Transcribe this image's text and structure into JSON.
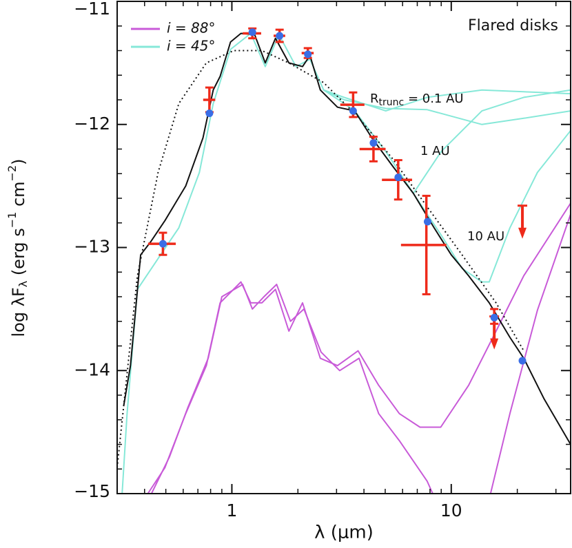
{
  "chart_data": {
    "type": "line",
    "xscale": "log",
    "xlim": [
      0.3,
      35
    ],
    "ylim": [
      -15,
      -11
    ],
    "xticks": [
      1,
      10
    ],
    "xminor_ticks": [
      0.3,
      0.4,
      0.5,
      0.6,
      0.7,
      0.8,
      0.9,
      2,
      3,
      4,
      5,
      6,
      7,
      8,
      9,
      20,
      30
    ],
    "yticks": [
      {
        "value": -11,
        "label": "−11"
      },
      {
        "value": -12,
        "label": "−12"
      },
      {
        "value": -13,
        "label": "−13"
      },
      {
        "value": -14,
        "label": "−14"
      },
      {
        "value": -15,
        "label": "−15"
      }
    ],
    "yminor_ticks": [
      -11.2,
      -11.4,
      -11.6,
      -11.8,
      -12.2,
      -12.4,
      -12.6,
      -12.8,
      -13.2,
      -13.4,
      -13.6,
      -13.8,
      -14.2,
      -14.4,
      -14.6,
      -14.8
    ],
    "xlabel": "λ (μm)",
    "ylabel_parts": [
      "log λF",
      "λ",
      " (erg s",
      "−1",
      " cm",
      "−2",
      ")"
    ],
    "legend": "upper left",
    "annotations": {
      "title": "Flared disks",
      "rtrunc_parts": [
        "R",
        "trunc",
        " = 0.1 AU"
      ],
      "one_au": "1 AU",
      "ten_au": "10 AU"
    },
    "series": [
      {
        "name": "i = 88°",
        "color": "#c85ad8",
        "lines": [
          {
            "x": [
              0.414,
              0.495,
              0.616,
              0.765,
              0.884,
              1.1,
              1.22,
              1.37,
              1.58,
              1.82,
              2.1,
              2.53,
              3.03,
              3.76,
              4.67,
              5.8,
              7.2,
              8.95,
              12.0,
              16.0,
              21.4,
              35
            ],
            "values": [
              -15,
              -14.79,
              -14.35,
              -13.96,
              -13.45,
              -13.28,
              -13.45,
              -13.45,
              -13.34,
              -13.68,
              -13.45,
              -13.9,
              -13.96,
              -13.84,
              -14.12,
              -14.35,
              -14.46,
              -14.46,
              -14.12,
              -13.68,
              -13.23,
              -12.64
            ]
          },
          {
            "x": [
              0.43,
              0.52,
              0.63,
              0.78,
              0.9,
              1.12,
              1.24,
              1.4,
              1.6,
              1.85,
              2.13,
              2.55,
              3.1,
              3.8,
              4.67,
              5.8,
              7.77,
              8.23,
              null,
              15.1,
              18.5,
              24.7,
              35
            ],
            "values": [
              -15,
              -14.7,
              -14.3,
              -13.9,
              -13.4,
              -13.3,
              -13.5,
              -13.4,
              -13.3,
              -13.6,
              -13.5,
              -13.85,
              -14.0,
              -13.9,
              -14.35,
              -14.57,
              -14.9,
              -15,
              null,
              -15,
              -14.35,
              -13.51,
              -12.73
            ]
          }
        ]
      },
      {
        "name": "i = 45°",
        "color": "#86e8d8",
        "lines": [
          {
            "x": [
              0.316,
              0.333,
              0.371,
              0.461,
              0.573,
              0.711,
              0.822,
              0.986,
              1.22,
              1.42,
              1.64,
              1.96,
              2.27,
              2.62,
              3.25,
              3.63,
              5.03,
              6.72,
              9.0,
              11.2,
              13.8,
              14.9,
              18.5,
              24.7,
              35
            ],
            "values": [
              -15,
              -14.35,
              -13.34,
              -13.09,
              -12.84,
              -12.39,
              -11.83,
              -11.39,
              -11.26,
              -11.53,
              -11.27,
              -11.53,
              -11.47,
              -11.72,
              -11.83,
              -11.89,
              -12.22,
              -12.56,
              -12.9,
              -13.17,
              -13.28,
              -13.28,
              -12.84,
              -12.39,
              -12.05
            ]
          },
          {
            "x": [
              2.62,
              3.25,
              5.03,
              7.77,
              13.8,
              35
            ],
            "values": [
              -11.72,
              -11.78,
              -11.89,
              -11.78,
              -11.72,
              -11.75
            ]
          },
          {
            "x": [
              2.62,
              3.25,
              5.03,
              7.77,
              13.8,
              21.4,
              35
            ],
            "values": [
              -11.72,
              -11.8,
              -11.87,
              -11.88,
              -12.0,
              -11.95,
              -11.89
            ]
          },
          {
            "x": [
              6.72,
              9.0,
              13.8,
              21.4,
              35
            ],
            "values": [
              -12.56,
              -12.22,
              -11.89,
              -11.78,
              -11.72
            ]
          }
        ]
      },
      {
        "color": "#111111",
        "style": "solid",
        "x": [
          0.321,
          0.345,
          0.384,
          0.428,
          0.496,
          0.616,
          0.738,
          0.822,
          0.884,
          0.986,
          1.1,
          1.27,
          1.42,
          1.58,
          1.82,
          2.1,
          2.27,
          2.53,
          3.03,
          3.63,
          4.35,
          5.41,
          6.72,
          8.35,
          10,
          12.0,
          14.9,
          18.5,
          21.4,
          26.5,
          35
        ],
        "values": [
          -14.29,
          -13.96,
          -13.06,
          -12.95,
          -12.78,
          -12.5,
          -12.11,
          -11.72,
          -11.61,
          -11.33,
          -11.26,
          -11.27,
          -11.5,
          -11.3,
          -11.5,
          -11.53,
          -11.44,
          -11.72,
          -11.86,
          -11.89,
          -12.11,
          -12.34,
          -12.56,
          -12.84,
          -13.06,
          -13.23,
          -13.45,
          -13.73,
          -13.9,
          -14.23,
          -14.6
        ]
      },
      {
        "color": "#111111",
        "style": "dotted",
        "x": [
          0.3,
          0.371,
          0.461,
          0.573,
          0.765,
          1.02,
          1.37,
          1.82,
          2.62,
          3.76,
          5.41,
          7.77,
          11.2,
          16.0,
          21.4
        ],
        "values": [
          -14.79,
          -13.23,
          -12.39,
          -11.83,
          -11.5,
          -11.4,
          -11.4,
          -11.5,
          -11.66,
          -11.94,
          -12.28,
          -12.67,
          -13.06,
          -13.45,
          -13.84
        ]
      }
    ],
    "observations": {
      "color": "#ee2a1a",
      "x": [
        0.485,
        0.79,
        1.24,
        1.65,
        2.22,
        3.57,
        4.42,
        5.73,
        7.7,
        15.7
      ],
      "values": [
        -12.97,
        -11.8,
        -11.26,
        -11.28,
        -11.42,
        -11.84,
        -12.2,
        -12.45,
        -12.98,
        -13.56
      ],
      "xerr": [
        0.07,
        0.05,
        0.12,
        0.1,
        0.14,
        0.45,
        0.6,
        0.9,
        1.8,
        0
      ],
      "yerr": [
        0.09,
        0.1,
        0.04,
        0.05,
        0.04,
        0.1,
        0.1,
        0.16,
        0.4,
        0.06
      ]
    },
    "upper_limits": {
      "color": "#ee2a1a",
      "x": [
        15.7,
        21.1
      ],
      "values": [
        -13.56,
        -12.66
      ]
    },
    "model_points": {
      "color": "#3a6ee6",
      "x": [
        0.485,
        0.79,
        1.24,
        1.65,
        2.22,
        3.57,
        4.42,
        5.73,
        7.8,
        15.7,
        21.1
      ],
      "values": [
        -12.97,
        -11.91,
        -11.25,
        -11.28,
        -11.43,
        -11.89,
        -12.15,
        -12.43,
        -12.79,
        -13.57,
        -13.92
      ]
    }
  }
}
